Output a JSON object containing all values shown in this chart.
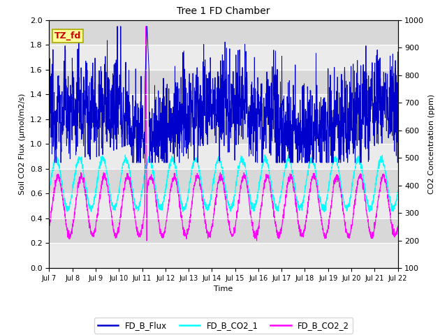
{
  "title": "Tree 1 FD Chamber",
  "xlabel": "Time",
  "ylabel_left": "Soil CO2 Flux (μmol/m2/s)",
  "ylabel_right": "CO2 Concentration (ppm)",
  "ylim_left": [
    0.0,
    2.0
  ],
  "ylim_right": [
    100,
    1000
  ],
  "xtick_labels": [
    "Jul 7",
    "Jul 8",
    "Jul 9",
    "Jul 10",
    "Jul 11",
    "Jul 12",
    "Jul 13",
    "Jul 14",
    "Jul 15",
    "Jul 16",
    "Jul 17",
    "Jul 18",
    "Jul 19",
    "Jul 20",
    "Jul 21",
    "Jul 22"
  ],
  "color_flux": "#0000CC",
  "color_co2_1": "#00FFFF",
  "color_co2_2": "#FF00FF",
  "legend_labels": [
    "FD_B_Flux",
    "FD_B_CO2_1",
    "FD_B_CO2_2"
  ],
  "annotation_text": "TZ_fd",
  "annotation_color": "#CC0000",
  "annotation_bg": "#FFFF99",
  "plot_bg": "#EBEBEB",
  "band_color": "#DCDCDC",
  "n_points": 2000
}
